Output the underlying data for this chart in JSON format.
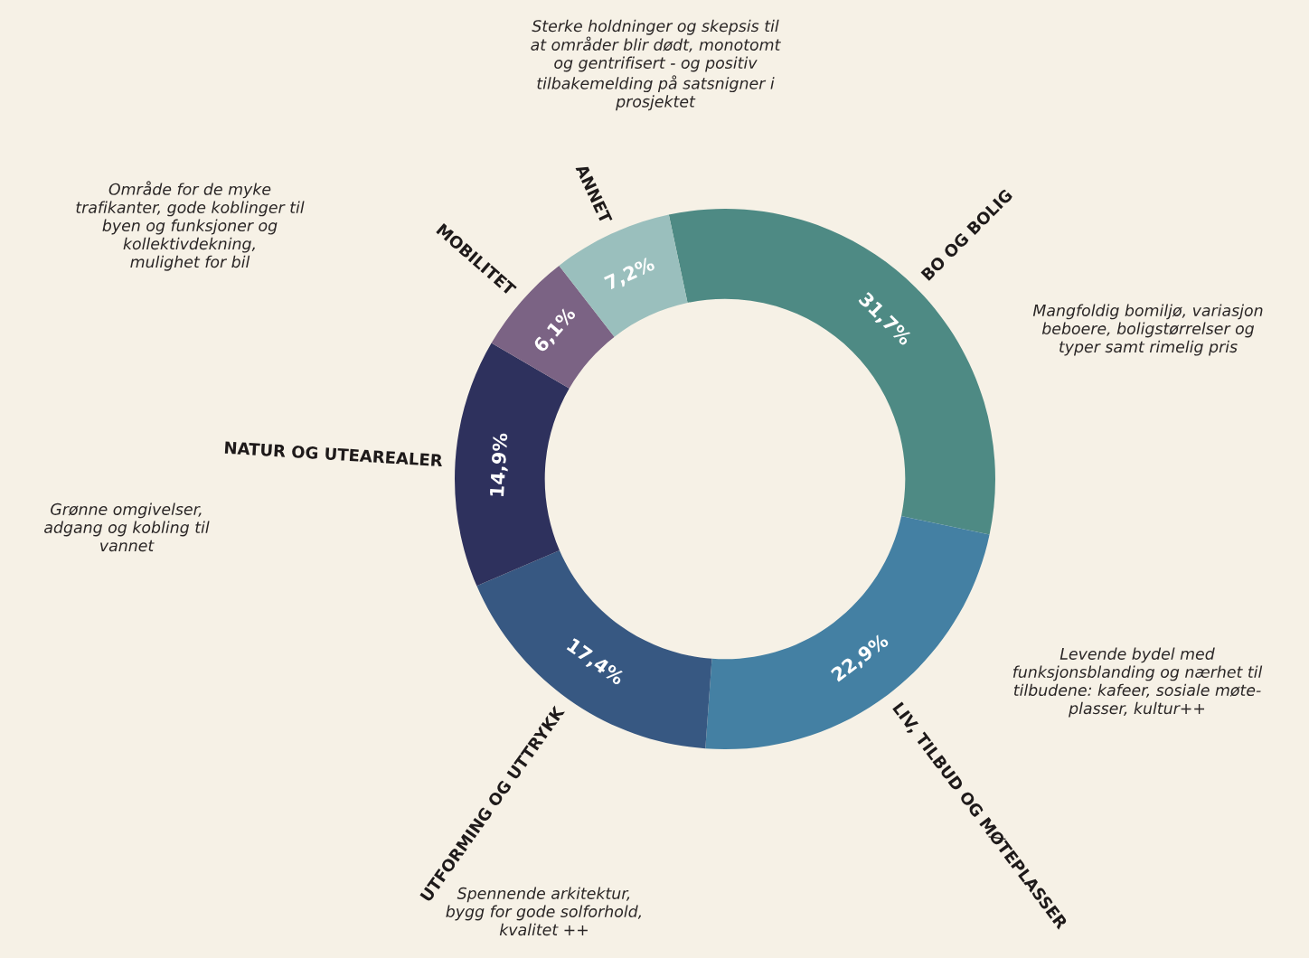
{
  "chart_data": {
    "type": "donut",
    "categories": [
      "BO OG BOLIG",
      "LIV, TILBUD OG MØTEPLASSER",
      "UTFORMING OG UTTRYKK",
      "NATUR OG UTEAREALER",
      "MOBILITET",
      "ANNET"
    ],
    "values": [
      31.7,
      22.9,
      17.4,
      14.9,
      6.1,
      7.2
    ],
    "value_labels": [
      "31,7%",
      "22,9%",
      "17,4%",
      "14,9%",
      "6,1%",
      "7,2%"
    ],
    "colors": [
      "#4e8a84",
      "#4480a3",
      "#375882",
      "#2e315d",
      "#7b6384",
      "#9abfbd"
    ],
    "annotations": [
      "Mangfoldig bomiljø, variasjon\nbeboere, boligstørrelser og\ntyper samt rimelig pris",
      "Levende bydel med\nfunksjonsblanding og nærhet til\ntilbudene: kafeer, sosiale møte-\nplasser, kultur++",
      "Spennende arkitektur,\nbygg for gode solforhold,\nkvalitet ++",
      "Grønne omgivelser,\nadgang og kobling til\nvannet",
      "Område for de myke\ntrafikanter, gode koblinger til\nbyen og funksjoner og\nkollektivdekning,\nmulighet for bil",
      "Sterke holdninger og skepsis til\nat områder blir dødt, monotomt\nog gentrifisert - og positiv\ntilbakemelding på satsnigner i\nprosjektet"
    ]
  }
}
